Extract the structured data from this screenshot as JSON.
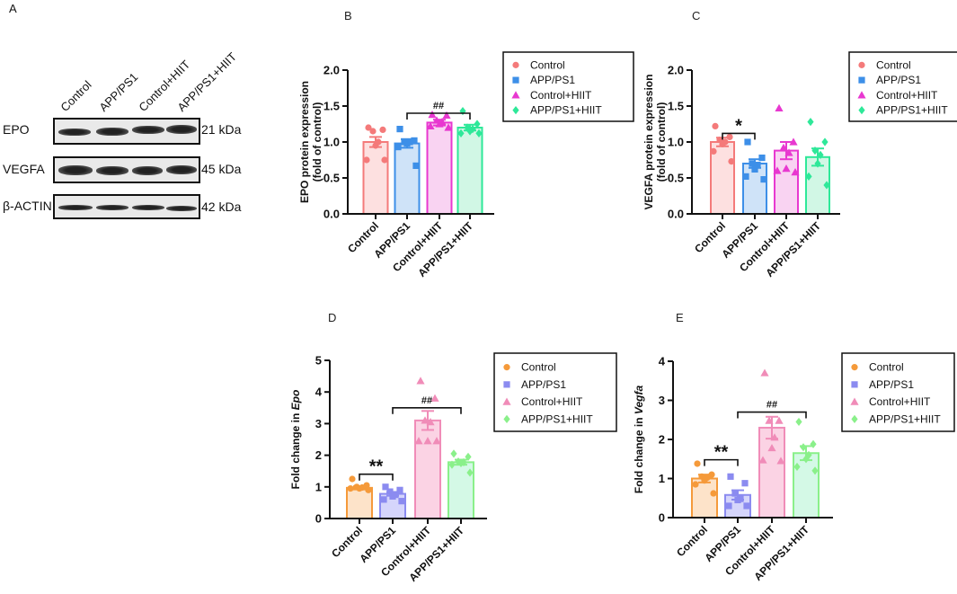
{
  "panel_a": {
    "letter": "A",
    "lanes": [
      "Control",
      "APP/PS1",
      "Control+HIIT",
      "APP/PS1+HIIT"
    ],
    "blots": [
      {
        "protein": "EPO",
        "size": "21 kDa"
      },
      {
        "protein": "VEGFA",
        "size": "45 kDa"
      },
      {
        "protein": "β-ACTIN",
        "size": "42 kDa"
      }
    ]
  },
  "chart_data": [
    {
      "panel": "B",
      "type": "bar",
      "categories": [
        "Control",
        "APP/PS1",
        "Control+HIIT",
        "APP/PS1+HIIT"
      ],
      "legend": [
        "Control",
        "APP/PS1",
        "Control+HIIT",
        "APP/PS1+HIIT"
      ],
      "legend_placement": "right",
      "ylabel": [
        "EPO protein expression",
        "(fold of control)"
      ],
      "ylabel_italic": "",
      "ylim": [
        0,
        2.0
      ],
      "yticks": [
        "0.0",
        "0.5",
        "1.0",
        "1.5",
        "2.0"
      ],
      "values": [
        1.0,
        0.98,
        1.27,
        1.2
      ],
      "sem": [
        0.07,
        0.06,
        0.04,
        0.04
      ],
      "points": [
        [
          1.2,
          1.17,
          1.15,
          1.0,
          0.95,
          0.75,
          0.75
        ],
        [
          1.18,
          1.02,
          1.0,
          1.0,
          0.98,
          0.93,
          0.67
        ],
        [
          1.38,
          1.37,
          1.3,
          1.28,
          1.25,
          1.22,
          1.2
        ],
        [
          1.43,
          1.25,
          1.2,
          1.18,
          1.15,
          1.12,
          1.12
        ]
      ],
      "significance": [
        {
          "from": 1,
          "to": 3,
          "label": "##",
          "y": 1.4
        }
      ],
      "colors": [
        "#f47a7a",
        "#3d8fe8",
        "#e838d0",
        "#2ee899"
      ],
      "fills": [
        "#fde0e0",
        "#cfe3f8",
        "#f9d3f2",
        "#d1f7e5"
      ]
    },
    {
      "panel": "C",
      "type": "bar",
      "categories": [
        "Control",
        "APP/PS1",
        "Control+HIIT",
        "APP/PS1+HIIT"
      ],
      "legend": [
        "Control",
        "APP/PS1",
        "Control+HIIT",
        "APP/PS1+HIIT"
      ],
      "legend_placement": "right",
      "ylabel": [
        "VEGFA protein expression",
        "(fold of control)"
      ],
      "ylabel_italic": "",
      "ylim": [
        0,
        2.0
      ],
      "yticks": [
        "0.0",
        "0.5",
        "1.0",
        "1.5",
        "2.0"
      ],
      "values": [
        1.0,
        0.7,
        0.88,
        0.79
      ],
      "sem": [
        0.06,
        0.06,
        0.12,
        0.12
      ],
      "points": [
        [
          1.22,
          1.07,
          1.03,
          1.0,
          0.97,
          0.87,
          0.73
        ],
        [
          1.0,
          0.78,
          0.7,
          0.68,
          0.62,
          0.52,
          0.48
        ],
        [
          1.47,
          1.0,
          0.92,
          0.85,
          0.63,
          0.6,
          0.58
        ],
        [
          1.28,
          1.0,
          0.88,
          0.82,
          0.7,
          0.52,
          0.4
        ]
      ],
      "significance": [
        {
          "from": 0,
          "to": 1,
          "label": "*",
          "y": 1.12
        }
      ],
      "colors": [
        "#f47a7a",
        "#3d8fe8",
        "#e838d0",
        "#2ee899"
      ],
      "fills": [
        "#fde0e0",
        "#cfe3f8",
        "#f9d3f2",
        "#d1f7e5"
      ]
    },
    {
      "panel": "D",
      "type": "bar",
      "categories": [
        "Control",
        "APP/PS1",
        "Control+HIIT",
        "APP/PS1+HIIT"
      ],
      "legend": [
        "Control",
        "APP/PS1",
        "Control+HIIT",
        "APP/PS1+HIIT"
      ],
      "legend_placement": "right",
      "ylabel": [
        "Fold change in "
      ],
      "ylabel_italic": "Epo",
      "ylim": [
        0,
        5
      ],
      "yticks": [
        "0",
        "1",
        "2",
        "3",
        "4",
        "5"
      ],
      "values": [
        0.97,
        0.78,
        3.1,
        1.78
      ],
      "sem": [
        0.05,
        0.06,
        0.3,
        0.08
      ],
      "points": [
        [
          1.25,
          1.05,
          1.0,
          0.98,
          0.95,
          0.95,
          0.9
        ],
        [
          1.0,
          0.9,
          0.85,
          0.75,
          0.7,
          0.6,
          0.55
        ],
        [
          4.35,
          3.8,
          3.1,
          3.05,
          2.45,
          2.45,
          2.45
        ],
        [
          2.05,
          1.95,
          1.8,
          1.78,
          1.75,
          1.7,
          1.45
        ]
      ],
      "significance": [
        {
          "from": 0,
          "to": 1,
          "label": "**",
          "y": 1.4
        },
        {
          "from": 1,
          "to": 3,
          "label": "##",
          "y": 3.5
        }
      ],
      "colors": [
        "#f59a3a",
        "#8b8bf0",
        "#f08cb8",
        "#8af08a"
      ],
      "fills": [
        "#fde3c9",
        "#d5d5fb",
        "#fbd3e4",
        "#d4f9e6"
      ]
    },
    {
      "panel": "E",
      "type": "bar",
      "categories": [
        "Control",
        "APP/PS1",
        "Control+HIIT",
        "APP/PS1+HIIT"
      ],
      "legend": [
        "Control",
        "APP/PS1",
        "Control+HIIT",
        "APP/PS1+HIIT"
      ],
      "legend_placement": "right",
      "ylabel": [
        "Fold change in "
      ],
      "ylabel_italic": "Vegfa",
      "ylim": [
        0,
        4
      ],
      "yticks": [
        "0",
        "1",
        "2",
        "3",
        "4"
      ],
      "values": [
        1.0,
        0.58,
        2.3,
        1.65
      ],
      "sem": [
        0.1,
        0.12,
        0.28,
        0.18
      ],
      "points": [
        [
          1.38,
          1.1,
          1.05,
          1.02,
          0.95,
          0.85,
          0.62
        ],
        [
          1.05,
          0.88,
          0.62,
          0.48,
          0.45,
          0.3,
          0.3
        ],
        [
          3.7,
          2.48,
          2.48,
          2.05,
          1.78,
          1.47,
          1.45
        ],
        [
          2.45,
          1.88,
          1.8,
          1.6,
          1.5,
          1.3,
          1.2
        ]
      ],
      "significance": [
        {
          "from": 0,
          "to": 1,
          "label": "**",
          "y": 1.48
        },
        {
          "from": 1,
          "to": 3,
          "label": "##",
          "y": 2.7
        }
      ],
      "colors": [
        "#f59a3a",
        "#8b8bf0",
        "#f08cb8",
        "#8af08a"
      ],
      "fills": [
        "#fde3c9",
        "#d5d5fb",
        "#fbd3e4",
        "#d4f9e6"
      ]
    }
  ]
}
